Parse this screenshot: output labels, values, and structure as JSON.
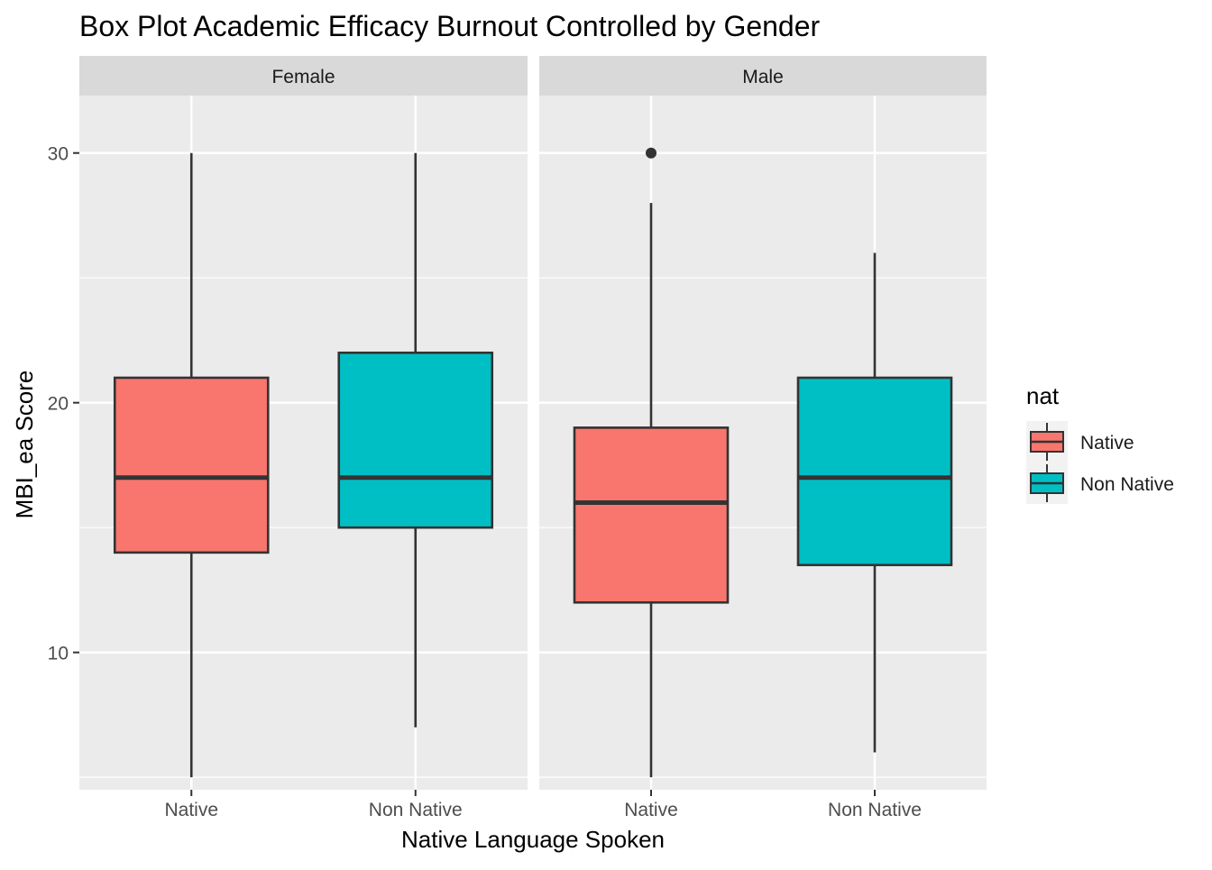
{
  "chart_data": {
    "type": "box",
    "title": "Box Plot Academic Efficacy Burnout Controlled by Gender",
    "xlabel": "Native Language Spoken",
    "ylabel": "MBI_ea Score",
    "ylim": [
      4.5,
      32.3
    ],
    "yticks": [
      10,
      20,
      30
    ],
    "grid": true,
    "facets": [
      {
        "label": "Female",
        "categories": [
          "Native",
          "Non Native"
        ],
        "boxes": [
          {
            "category": "Native",
            "min": 5,
            "q1": 14,
            "median": 17,
            "q3": 21,
            "max": 30,
            "outliers": []
          },
          {
            "category": "Non Native",
            "min": 7,
            "q1": 15,
            "median": 17,
            "q3": 22,
            "max": 30,
            "outliers": []
          }
        ]
      },
      {
        "label": "Male",
        "categories": [
          "Native",
          "Non Native"
        ],
        "boxes": [
          {
            "category": "Native",
            "min": 5,
            "q1": 12,
            "median": 16,
            "q3": 19,
            "max": 28,
            "outliers": [
              30
            ]
          },
          {
            "category": "Non Native",
            "min": 6,
            "q1": 13.5,
            "median": 17,
            "q3": 21,
            "max": 26,
            "outliers": []
          }
        ]
      }
    ],
    "legend": {
      "title": "nat",
      "position": "right",
      "entries": [
        {
          "label": "Native",
          "color": "#F8766D"
        },
        {
          "label": "Non Native",
          "color": "#00BFC4"
        }
      ]
    }
  }
}
